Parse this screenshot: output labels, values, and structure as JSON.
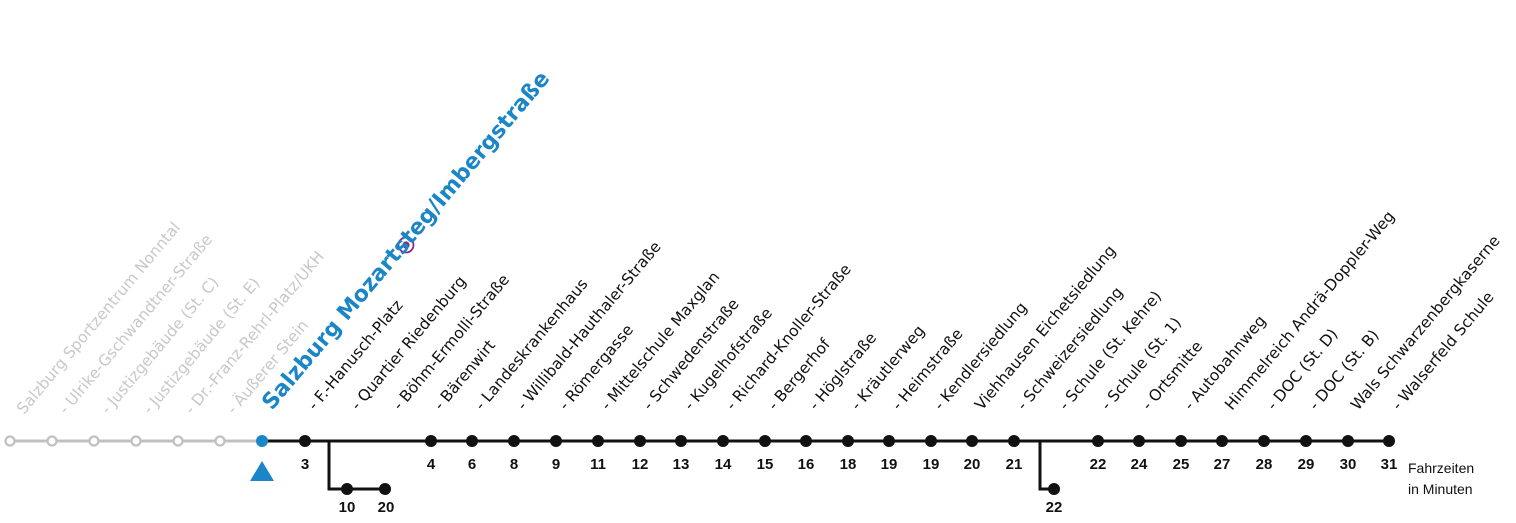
{
  "line": {
    "past_color": "#c0c0c0",
    "active_color": "#111111",
    "current_color": "#1a86c8",
    "interchange_icon": "interchange-ring-icon",
    "interchange_color": "#8a2a86"
  },
  "past_stops": [
    {
      "label": "Salzburg Sportzentrum Nonntal"
    },
    {
      "label": "- Ulrike-Gschwandtner-Straße"
    },
    {
      "label": "- Justizgebäude (St. C)"
    },
    {
      "label": "- Justizgebäude (St. E)"
    },
    {
      "label": "- Dr.-Franz-Rehrl-Platz/UKH"
    },
    {
      "label": "- Äußerer Stein"
    }
  ],
  "current_stop": {
    "label": "Salzburg Mozartsteg/Imbergstraße",
    "marker_icon": "current-position-triangle-icon"
  },
  "stops": [
    {
      "label": "- F.-Hanusch-Platz",
      "time": "3",
      "interchange": true
    },
    {
      "label": "- Quartier Riedenburg",
      "time": "10",
      "branch": 1
    },
    {
      "label": "- Böhm-Ermolli-Straße",
      "time": "20",
      "branch": 1
    },
    {
      "label": "- Bärenwirt",
      "time": "4"
    },
    {
      "label": "- Landeskrankenhaus",
      "time": "6"
    },
    {
      "label": "- Willibald-Hauthaler-Straße",
      "time": "8"
    },
    {
      "label": "- Römergasse",
      "time": "9"
    },
    {
      "label": "- Mittelschule Maxglan",
      "time": "11"
    },
    {
      "label": "- Schwedenstraße",
      "time": "12"
    },
    {
      "label": "- Kugelhofstraße",
      "time": "13"
    },
    {
      "label": "- Richard-Knoller-Straße",
      "time": "14"
    },
    {
      "label": "- Bergerhof",
      "time": "15"
    },
    {
      "label": "- Höglstraße",
      "time": "16"
    },
    {
      "label": "- Kräutlerweg",
      "time": "18"
    },
    {
      "label": "- Heimstraße",
      "time": "19"
    },
    {
      "label": "- Kendlersiedlung",
      "time": "19"
    },
    {
      "label": "Viehhausen Eichetsiedlung",
      "time": "20"
    },
    {
      "label": "- Schweizersiedlung",
      "time": "21"
    },
    {
      "label": "- Schule (St. Kehre)",
      "time": "22",
      "branch": 2
    },
    {
      "label": "- Schule (St. 1)",
      "time": "22"
    },
    {
      "label": "- Ortsmitte",
      "time": "24"
    },
    {
      "label": "- Autobahnweg",
      "time": "25"
    },
    {
      "label": "Himmelreich Andrä-Doppler-Weg",
      "time": "27"
    },
    {
      "label": "- DOC (St. D)",
      "time": "28"
    },
    {
      "label": "- DOC (St. B)",
      "time": "29"
    },
    {
      "label": "Wals Schwarzenbergkaserne",
      "time": "30"
    },
    {
      "label": "- Walserfeld Schule",
      "time": "31"
    }
  ],
  "legend": {
    "line1": "Fahrzeiten",
    "line2": "in Minuten"
  }
}
